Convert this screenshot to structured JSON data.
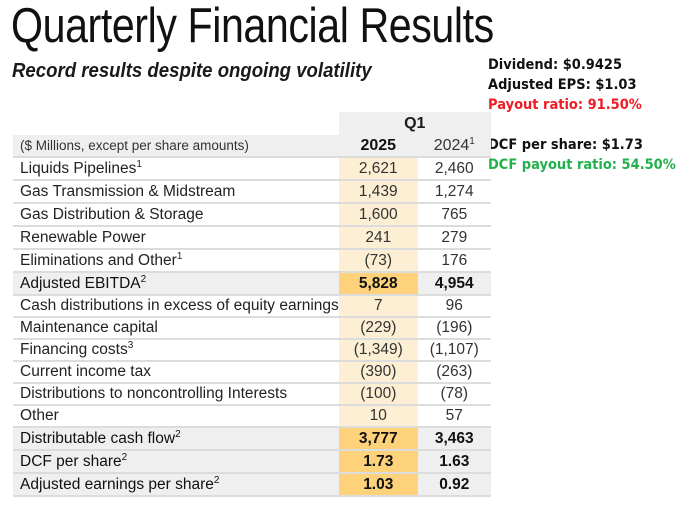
{
  "header": {
    "title": "Quarterly Financial Results",
    "subtitle": "Record results despite ongoing volatility"
  },
  "notes": {
    "dividend": "Dividend: $0.9425",
    "adjusted_eps": "Adjusted EPS: $1.03",
    "payout_ratio": "Payout ratio: 91.50%",
    "dcf_per_share": "DCF per share: $1.73",
    "dcf_payout_ratio": "DCF payout ratio: 54.50%",
    "colors": {
      "payout_ratio": "#ee1c25",
      "dcf_payout_ratio": "#22b14c"
    }
  },
  "table": {
    "period_label": "Q1",
    "column_header_label": "($ Millions, except per share amounts)",
    "columns": [
      {
        "label": "2025",
        "footnote": ""
      },
      {
        "label": "2024",
        "footnote": "1"
      }
    ],
    "rows": [
      {
        "label": "Liquids Pipelines",
        "footnote": "1",
        "v2025": "2,621",
        "v2024": "2,460",
        "bold": false
      },
      {
        "label": "Gas Transmission & Midstream",
        "footnote": "",
        "v2025": "1,439",
        "v2024": "1,274",
        "bold": false
      },
      {
        "label": "Gas Distribution & Storage",
        "footnote": "",
        "v2025": "1,600",
        "v2024": "765",
        "bold": false
      },
      {
        "label": "Renewable Power",
        "footnote": "",
        "v2025": "241",
        "v2024": "279",
        "bold": false
      },
      {
        "label": "Eliminations and Other",
        "footnote": "1",
        "v2025": "(73)",
        "v2024": "176",
        "bold": false
      },
      {
        "label": "Adjusted EBITDA",
        "footnote": "2",
        "v2025": "5,828",
        "v2024": "4,954",
        "bold": true
      },
      {
        "label": "Cash distributions in excess of equity earnings",
        "footnote": "",
        "v2025": "7",
        "v2024": "96",
        "bold": false
      },
      {
        "label": "Maintenance capital",
        "footnote": "",
        "v2025": "(229)",
        "v2024": "(196)",
        "bold": false
      },
      {
        "label": "Financing costs",
        "footnote": "3",
        "v2025": "(1,349)",
        "v2024": "(1,107)",
        "bold": false
      },
      {
        "label": "Current income tax",
        "footnote": "",
        "v2025": "(390)",
        "v2024": "(263)",
        "bold": false
      },
      {
        "label": "Distributions to noncontrolling Interests",
        "footnote": "",
        "v2025": "(100)",
        "v2024": "(78)",
        "bold": false
      },
      {
        "label": "Other",
        "footnote": "",
        "v2025": "10",
        "v2024": "57",
        "bold": false
      },
      {
        "label": "Distributable cash flow",
        "footnote": "2",
        "v2025": "3,777",
        "v2024": "3,463",
        "bold": true
      },
      {
        "label": "DCF per share",
        "footnote": "2",
        "v2025": "1.73",
        "v2024": "1.63",
        "bold": true
      },
      {
        "label": "Adjusted earnings per share",
        "footnote": "2",
        "v2025": "1.03",
        "v2024": "0.92",
        "bold": true
      }
    ],
    "colors": {
      "highlight_light": "#fdefd3",
      "highlight_strong": "#fdd27a",
      "header_gray": "#efefef"
    }
  }
}
